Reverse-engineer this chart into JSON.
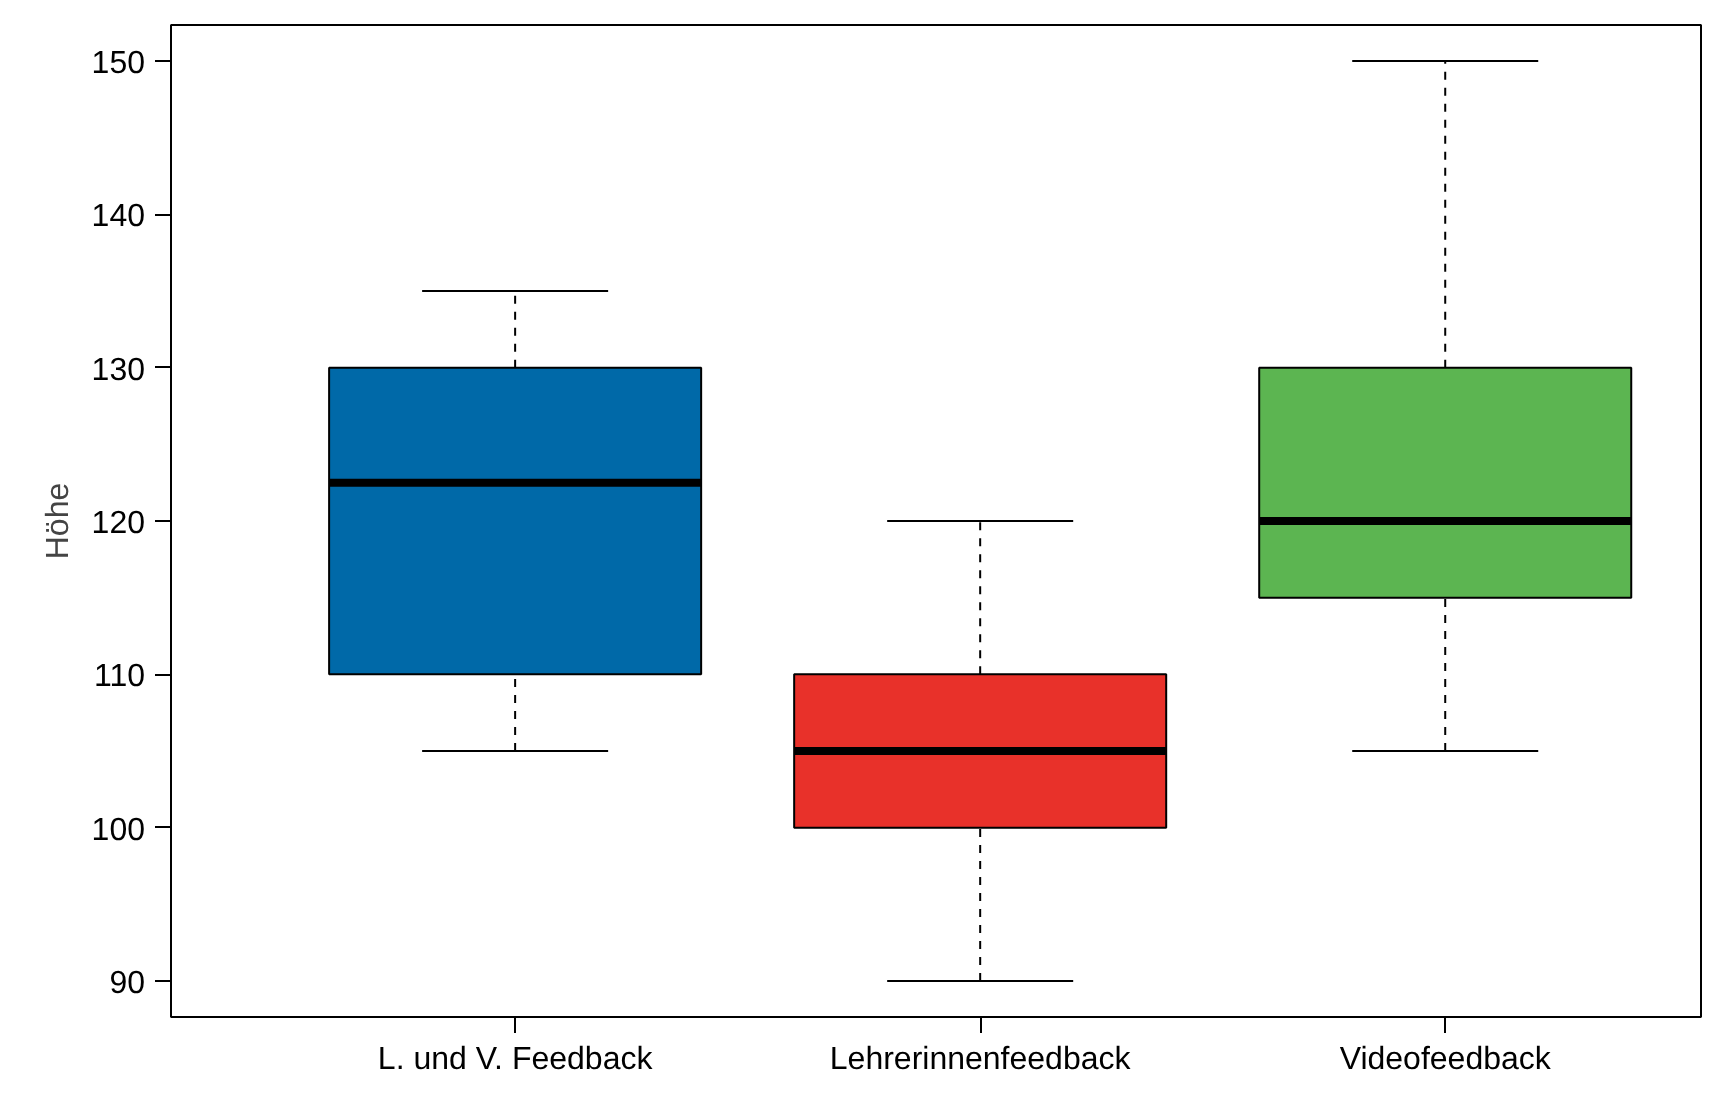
{
  "chart_data": {
    "type": "box",
    "ylabel": "Höhe",
    "categories": [
      "L. und V. Feedback",
      "Lehrerinnenfeedback",
      "Videofeedback"
    ],
    "boxes": [
      {
        "low": 105,
        "q1": 110,
        "median": 122.5,
        "q3": 130,
        "high": 135
      },
      {
        "low": 90,
        "q1": 100,
        "median": 105,
        "q3": 110,
        "high": 120
      },
      {
        "low": 105,
        "q1": 115,
        "median": 120,
        "q3": 130,
        "high": 150
      }
    ],
    "colors": [
      "#0069a8",
      "#e8312a",
      "#5cb551"
    ],
    "ylim": [
      87.65,
      152.35
    ],
    "yticks": [
      90,
      100,
      110,
      120,
      130,
      140,
      150
    ]
  }
}
